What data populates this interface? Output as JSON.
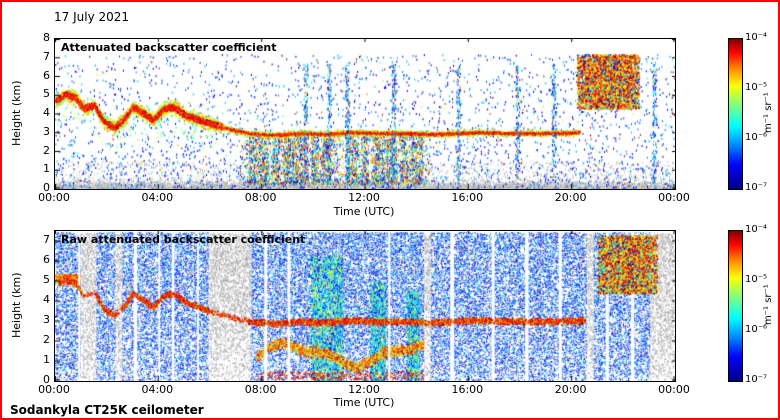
{
  "header": {
    "date": "17 July 2021"
  },
  "footer": {
    "instrument": "Sodankyla CT25K ceilometer"
  },
  "chart_data": [
    {
      "type": "heatmap",
      "title": "Attenuated backscatter coefficient",
      "xlabel": "Time (UTC)",
      "ylabel": "Height (km)",
      "x_ticks": [
        "00:00",
        "04:00",
        "08:00",
        "12:00",
        "16:00",
        "20:00",
        "00:00"
      ],
      "x_range_hours": [
        0,
        24
      ],
      "ylim": [
        0,
        8
      ],
      "y_ticks": [
        0,
        1,
        2,
        3,
        4,
        5,
        6,
        7,
        8
      ],
      "colorbar": {
        "colormap": "jet",
        "scale": "log",
        "range_m1sr1": [
          "1e-7",
          "1e-4"
        ],
        "ticks": [
          "10⁻⁴",
          "10⁻⁵",
          "10⁻⁶",
          "10⁻⁷"
        ],
        "unit": "m⁻¹ sr⁻¹"
      },
      "features": {
        "aerosol_layer_path_hour_km": [
          [
            0,
            4.7
          ],
          [
            0.4,
            5.1
          ],
          [
            0.8,
            4.9
          ],
          [
            1.1,
            4.3
          ],
          [
            1.5,
            4.5
          ],
          [
            1.9,
            3.6
          ],
          [
            2.3,
            3.3
          ],
          [
            2.7,
            3.8
          ],
          [
            3.0,
            4.4
          ],
          [
            3.4,
            4.1
          ],
          [
            3.8,
            3.7
          ],
          [
            4.2,
            4.3
          ],
          [
            4.6,
            4.4
          ],
          [
            5.0,
            4.0
          ],
          [
            5.4,
            3.8
          ],
          [
            5.8,
            3.6
          ],
          [
            6.3,
            3.4
          ],
          [
            6.8,
            3.2
          ],
          [
            7.5,
            3.0
          ],
          [
            8.5,
            2.9
          ],
          [
            9.5,
            3.0
          ],
          [
            10.5,
            2.95
          ],
          [
            11.5,
            3.05
          ],
          [
            12.5,
            3.0
          ],
          [
            13.5,
            3.0
          ],
          [
            14.5,
            2.95
          ],
          [
            15.5,
            3.0
          ],
          [
            16.5,
            3.05
          ],
          [
            17.5,
            3.0
          ],
          [
            18.5,
            3.0
          ],
          [
            19.3,
            3.0
          ],
          [
            20.3,
            3.05
          ]
        ],
        "boundary_layer_fuzz_top_km": 1.5,
        "clutter_region": {
          "hours": [
            7.2,
            14.5
          ],
          "km": [
            0.3,
            3.0
          ]
        },
        "cloud_blob": {
          "hours": [
            20.2,
            22.6
          ],
          "km": [
            4.3,
            7.2
          ]
        },
        "cloud_columns_hours": [
          19.3,
          23.2
        ]
      }
    },
    {
      "type": "heatmap",
      "title": "Raw attenuated backscatter coefficient",
      "xlabel": "Time (UTC)",
      "ylabel": "Height (km)",
      "x_ticks": [
        "00:00",
        "04:00",
        "08:00",
        "12:00",
        "16:00",
        "20:00",
        "00:00"
      ],
      "x_range_hours": [
        0,
        24
      ],
      "ylim": [
        0,
        7.5
      ],
      "y_ticks": [
        0,
        1,
        2,
        3,
        4,
        5,
        6,
        7
      ],
      "colorbar": {
        "colormap": "jet",
        "scale": "log",
        "range_m1sr1": [
          "1e-7",
          "1e-4"
        ],
        "ticks": [
          "10⁻⁴",
          "10⁻⁵",
          "10⁻⁶",
          "10⁻⁷"
        ],
        "unit": "m⁻¹ sr⁻¹"
      },
      "features": {
        "aerosol_layer_path_hour_km": [
          [
            0,
            4.7
          ],
          [
            0.4,
            5.1
          ],
          [
            0.8,
            4.9
          ],
          [
            1.1,
            4.3
          ],
          [
            1.5,
            4.5
          ],
          [
            1.9,
            3.6
          ],
          [
            2.3,
            3.3
          ],
          [
            2.7,
            3.8
          ],
          [
            3.0,
            4.4
          ],
          [
            3.4,
            4.1
          ],
          [
            3.8,
            3.7
          ],
          [
            4.2,
            4.3
          ],
          [
            4.6,
            4.4
          ],
          [
            5.0,
            4.0
          ],
          [
            5.4,
            3.8
          ],
          [
            5.8,
            3.6
          ],
          [
            6.3,
            3.4
          ],
          [
            6.8,
            3.2
          ],
          [
            7.5,
            3.0
          ],
          [
            8.5,
            2.9
          ],
          [
            9.5,
            3.0
          ],
          [
            10.5,
            2.95
          ],
          [
            11.5,
            3.05
          ],
          [
            12.5,
            3.0
          ],
          [
            13.5,
            3.0
          ],
          [
            14.5,
            2.95
          ],
          [
            15.5,
            3.0
          ],
          [
            16.5,
            3.05
          ],
          [
            17.5,
            3.0
          ],
          [
            18.5,
            3.0
          ],
          [
            19.3,
            3.0
          ],
          [
            20.3,
            3.05
          ]
        ],
        "low_level_layer": {
          "hours": [
            7.8,
            14.5
          ],
          "km": [
            0.8,
            2.5
          ]
        },
        "gray_columns_hours": [
          [
            1.0,
            1.6
          ],
          [
            2.35,
            2.6
          ],
          [
            5.95,
            7.6
          ],
          [
            14.3,
            14.55
          ],
          [
            20.6,
            20.85
          ],
          [
            23.05,
            24
          ]
        ],
        "white_stripes_hours": [
          [
            0.9,
            0.98
          ],
          [
            3.05,
            3.18
          ],
          [
            4.0,
            4.07
          ],
          [
            4.52,
            4.62
          ],
          [
            5.5,
            5.57
          ],
          [
            8.1,
            8.22
          ],
          [
            9.0,
            9.1
          ],
          [
            12.9,
            12.98
          ],
          [
            15.3,
            15.45
          ],
          [
            16.9,
            17.02
          ],
          [
            18.2,
            18.33
          ],
          [
            19.5,
            19.62
          ],
          [
            21.32,
            21.44
          ],
          [
            22.3,
            22.42
          ]
        ],
        "cloud_blob": {
          "hours": [
            21.0,
            23.3
          ],
          "km": [
            4.4,
            7.3
          ]
        }
      }
    }
  ]
}
